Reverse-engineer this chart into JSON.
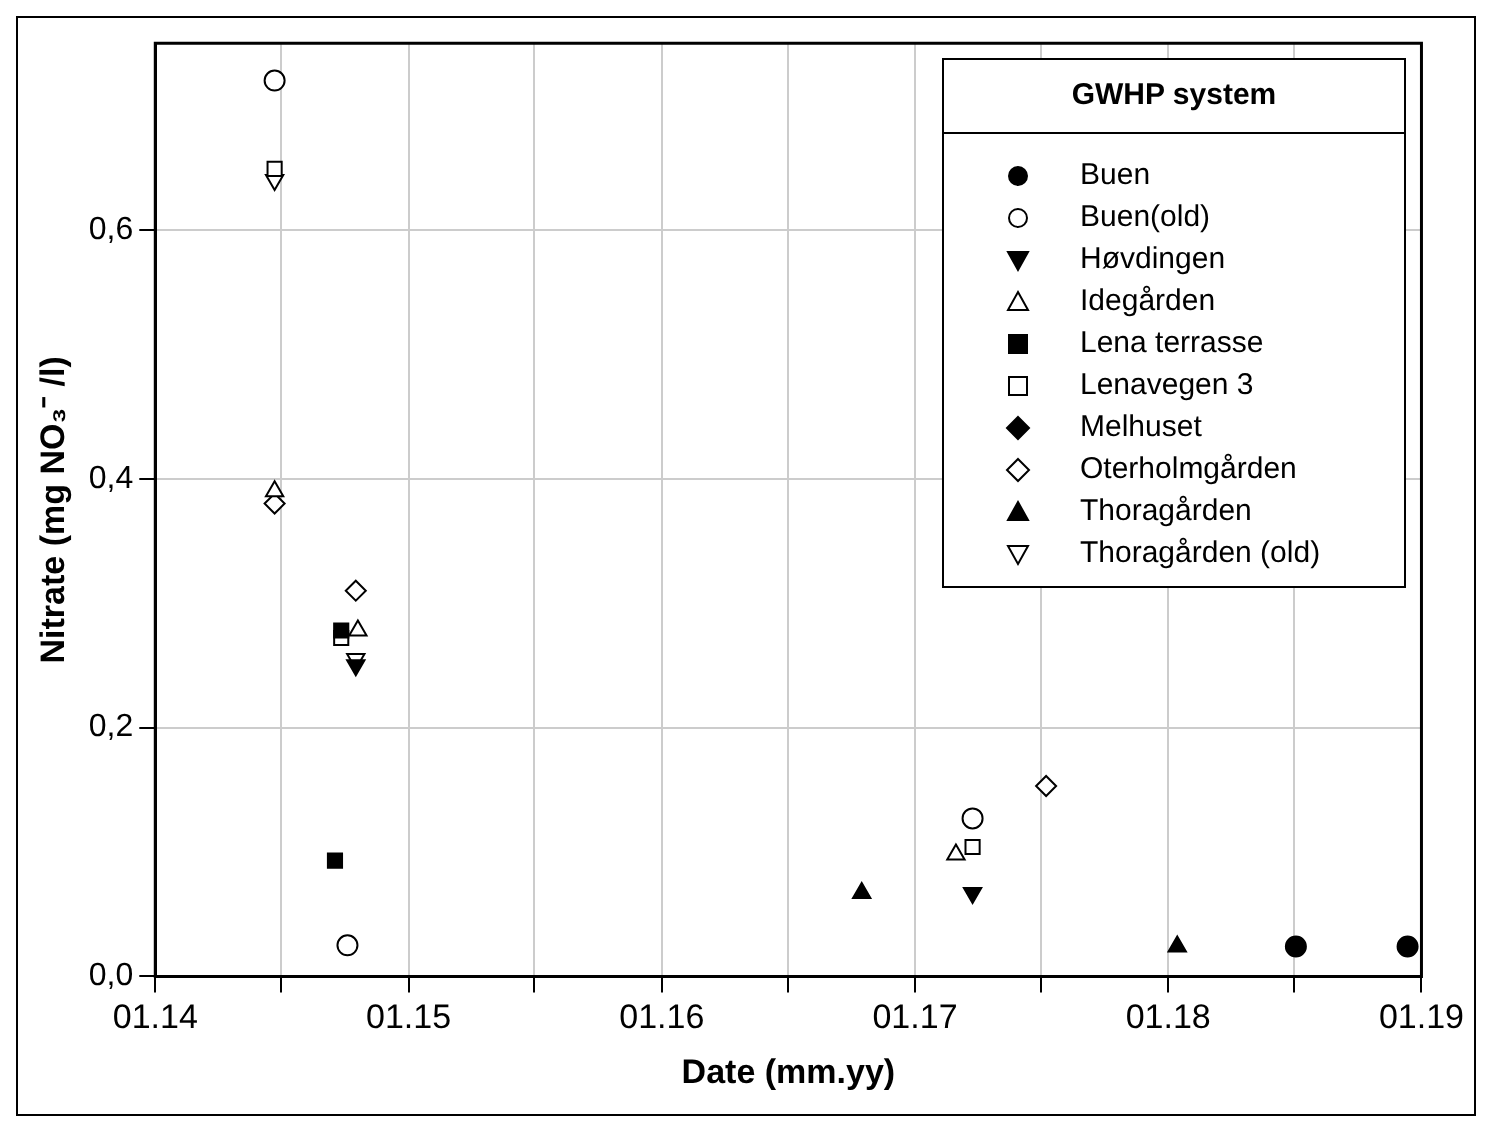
{
  "chart_data": {
    "type": "scatter",
    "xlabel": "Date (mm.yy)",
    "ylabel": "Nitrate (mg NO₃⁻ /l)",
    "legend_title": "GWHP system",
    "legend": "top right",
    "grid": true,
    "xlim": [
      "2014-01-01",
      "2019-01-01"
    ],
    "xticks": [
      {
        "value": "2014-01-01",
        "label": "01.14"
      },
      {
        "value": "2014-07-01",
        "label": null
      },
      {
        "value": "2015-01-01",
        "label": "01.15"
      },
      {
        "value": "2015-07-01",
        "label": null
      },
      {
        "value": "2016-01-01",
        "label": "01.16"
      },
      {
        "value": "2016-07-01",
        "label": null
      },
      {
        "value": "2017-01-01",
        "label": "01.17"
      },
      {
        "value": "2017-07-01",
        "label": null
      },
      {
        "value": "2018-01-01",
        "label": "01.18"
      },
      {
        "value": "2018-07-01",
        "label": null
      },
      {
        "value": "2019-01-01",
        "label": "01.19"
      }
    ],
    "ylim": [
      0,
      0.75
    ],
    "yticks": [
      {
        "value": 0,
        "label": "0,0"
      },
      {
        "value": 0.2,
        "label": "0,2"
      },
      {
        "value": 0.4,
        "label": "0,4"
      },
      {
        "value": 0.6,
        "label": "0,6"
      }
    ],
    "series": [
      {
        "name": "Buen",
        "color": "#000000",
        "marker": "circle",
        "x": [
          "2018-07-04",
          "2018-12-12"
        ],
        "values": [
          0.024,
          0.024
        ]
      },
      {
        "name": "Buen(old)",
        "color": "#ffffff",
        "marker": "circle",
        "x": [
          "2014-06-22",
          "2014-10-05",
          "2017-03-25"
        ],
        "values": [
          0.72,
          0.025,
          0.127
        ]
      },
      {
        "name": "Høvdingen",
        "color": "#000000",
        "marker": "triangle_down",
        "x": [
          "2014-10-17",
          "2017-03-25"
        ],
        "values": [
          0.25,
          0.067
        ]
      },
      {
        "name": "Idegården",
        "color": "#ffffff",
        "marker": "triangle",
        "x": [
          "2014-06-22",
          "2014-10-20",
          "2017-03-01"
        ],
        "values": [
          0.39,
          0.278,
          0.098
        ]
      },
      {
        "name": "Lena terrasse",
        "color": "#000000",
        "marker": "square",
        "x": [
          "2014-09-26",
          "2014-09-17"
        ],
        "values": [
          0.278,
          0.093
        ]
      },
      {
        "name": "Lenavegen 3",
        "color": "#ffffff",
        "marker": "square",
        "x": [
          "2014-06-22",
          "2014-09-26",
          "2017-03-25"
        ],
        "values": [
          0.649,
          0.272,
          0.104
        ]
      },
      {
        "name": "Melhuset",
        "color": "#000000",
        "marker": "diamond"
      },
      {
        "name": "Oterholmgården",
        "color": "#ffffff",
        "marker": "diamond",
        "x": [
          "2014-06-22",
          "2014-10-17",
          "2017-07-09"
        ],
        "values": [
          0.38,
          0.31,
          0.153
        ]
      },
      {
        "name": "Thoragården",
        "color": "#000000",
        "marker": "triangle",
        "x": [
          "2016-10-16",
          "2018-01-14"
        ],
        "values": [
          0.067,
          0.024
        ]
      },
      {
        "name": "Thoragården (old)",
        "color": "#ffffff",
        "marker": "triangle_down",
        "x": [
          "2014-06-22",
          "2014-10-17"
        ],
        "values": [
          0.64,
          0.255
        ]
      }
    ]
  }
}
